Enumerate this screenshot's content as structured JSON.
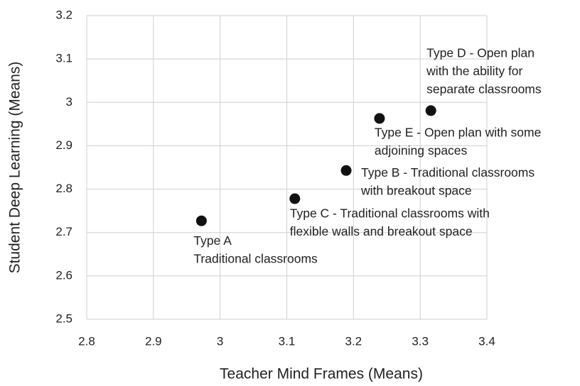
{
  "chart_data": {
    "type": "scatter",
    "xlabel": "Teacher Mind Frames (Means)",
    "ylabel": "Student Deep Learning (Means)",
    "x": [
      2.972,
      3.112,
      3.189,
      3.239,
      3.316
    ],
    "values": [
      2.727,
      2.778,
      2.843,
      2.963,
      2.981
    ],
    "point_labels": [
      [
        "Type A",
        "Traditional classrooms"
      ],
      [
        "Type C - Traditional classrooms with",
        "flexible walls and breakout space"
      ],
      [
        "Type B - Traditional classrooms",
        "with breakout space"
      ],
      [
        "Type E - Open plan with some",
        "adjoining spaces"
      ],
      [
        "Type D - Open plan",
        "with the ability for",
        "separate classrooms"
      ]
    ],
    "color": "#111111",
    "xlim": [
      2.8,
      3.4
    ],
    "xticks": [
      2.8,
      2.9,
      3,
      3.1,
      3.2,
      3.3,
      3.4
    ],
    "ylim": [
      2.5,
      3.2
    ],
    "yticks": [
      2.5,
      2.6,
      2.7,
      2.8,
      2.9,
      3,
      3.1,
      3.2
    ],
    "grid": true
  }
}
